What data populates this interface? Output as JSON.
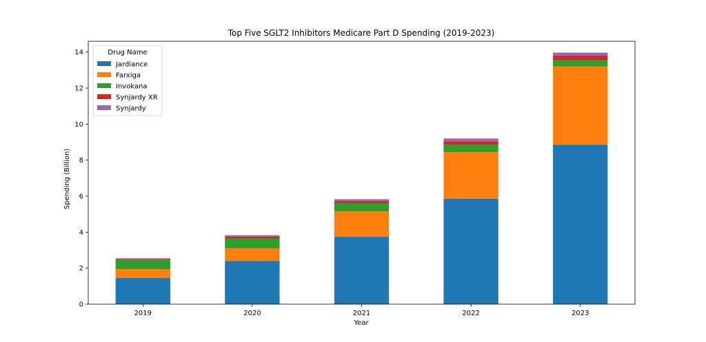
{
  "chart_data": {
    "type": "bar",
    "stacked": true,
    "title": "Top Five SGLT2 Inhibitors Medicare Part D Spending (2019-2023)",
    "xlabel": "Year",
    "ylabel": "Spending (Billion)",
    "categories": [
      "2019",
      "2020",
      "2021",
      "2022",
      "2023"
    ],
    "ylim": [
      0,
      14.6
    ],
    "yticks": [
      "0",
      "2",
      "4",
      "6",
      "8",
      "10",
      "12",
      "14"
    ],
    "legend": {
      "title": "Drug Name",
      "placement": "top-left"
    },
    "series": [
      {
        "name": "Jardiance",
        "color": "#1f77b4",
        "values": [
          1.45,
          2.4,
          3.75,
          5.85,
          8.85
        ]
      },
      {
        "name": "Farxiga",
        "color": "#ff7f0e",
        "values": [
          0.5,
          0.7,
          1.4,
          2.6,
          4.35
        ]
      },
      {
        "name": "Invokana",
        "color": "#2ca02c",
        "values": [
          0.5,
          0.55,
          0.45,
          0.4,
          0.35
        ]
      },
      {
        "name": "Synjardy XR",
        "color": "#d62728",
        "values": [
          0.06,
          0.1,
          0.13,
          0.2,
          0.25
        ]
      },
      {
        "name": "Synjardy",
        "color": "#9467bd",
        "values": [
          0.04,
          0.08,
          0.1,
          0.15,
          0.17
        ]
      }
    ]
  }
}
